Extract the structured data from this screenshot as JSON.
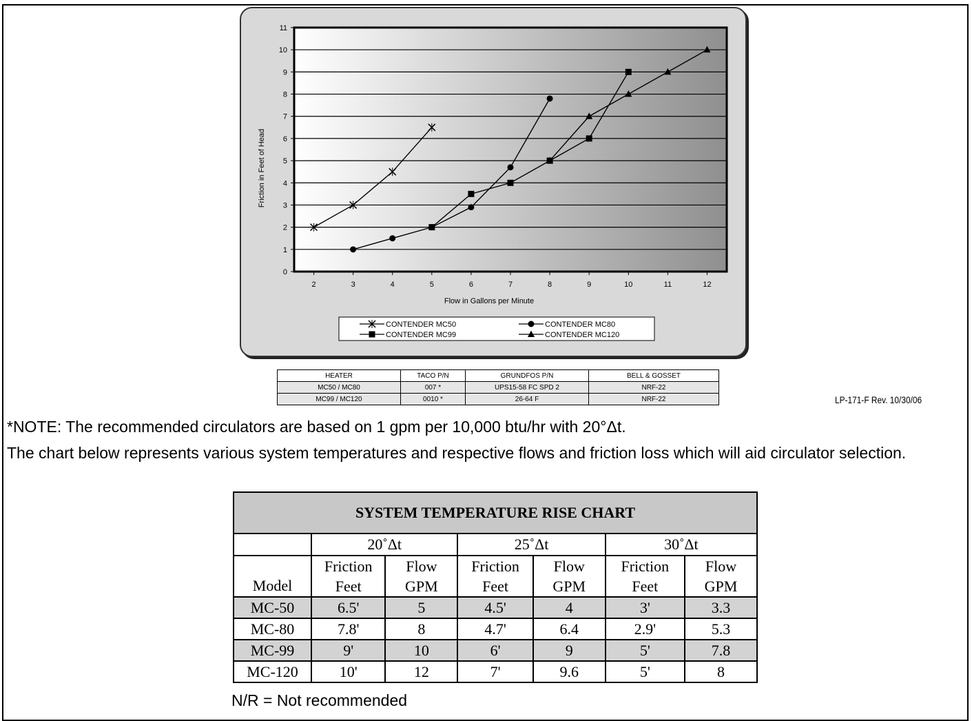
{
  "chart_data": {
    "type": "line",
    "xlabel": "Flow in Gallons per Minute",
    "ylabel": "Friction in Feet of Head",
    "xlim": [
      1.5,
      12.5
    ],
    "ylim": [
      0,
      11
    ],
    "x_ticks": [
      "2",
      "3",
      "4",
      "5",
      "6",
      "7",
      "8",
      "9",
      "10",
      "11",
      "12"
    ],
    "y_ticks": [
      "0",
      "1",
      "2",
      "3",
      "4",
      "5",
      "6",
      "7",
      "8",
      "9",
      "10",
      "11"
    ],
    "grid": "horizontal",
    "legend_position": "bottom",
    "series": [
      {
        "name": "CONTENDER MC50",
        "marker": "x",
        "x": [
          2,
          3,
          4,
          5
        ],
        "y": [
          2,
          3,
          4.5,
          6.5
        ]
      },
      {
        "name": "CONTENDER MC80",
        "marker": "circle",
        "x": [
          3,
          4,
          5,
          6,
          7,
          8
        ],
        "y": [
          1,
          1.5,
          2,
          2.9,
          4.7,
          7.8
        ]
      },
      {
        "name": "CONTENDER MC99",
        "marker": "square",
        "x": [
          5,
          6,
          7,
          8,
          9,
          10
        ],
        "y": [
          2,
          3.5,
          4,
          5,
          6,
          9
        ]
      },
      {
        "name": "CONTENDER MC120",
        "marker": "triangle",
        "x": [
          8,
          9,
          10,
          11,
          12
        ],
        "y": [
          5,
          7,
          8,
          9,
          10
        ]
      }
    ]
  },
  "circulator_table": {
    "headers": [
      "HEATER",
      "TACO P/N",
      "GRUNDFOS P/N",
      "BELL & GOSSET"
    ],
    "rows": [
      [
        "MC50 / MC80",
        "007 *",
        "UPS15-58 FC SPD 2",
        "NRF-22"
      ],
      [
        "MC99 / MC120",
        "0010 *",
        "26-64 F",
        "NRF-22"
      ]
    ]
  },
  "revision": "LP-171-F Rev. 10/30/06",
  "note1": "*NOTE: The recommended circulators are based on 1 gpm per 10,000 btu/hr with 20°Δt.",
  "note2": "The chart below represents various system temperatures and respective flows and friction loss which will aid circulator selection.",
  "rise_table": {
    "title": "SYSTEM TEMPERATURE RISE CHART",
    "groups": [
      "20˚Δt",
      "25˚Δt",
      "30˚Δt"
    ],
    "model_label": "Model",
    "sub_top": [
      "Friction",
      "Flow",
      "Friction",
      "Flow",
      "Friction",
      "Flow"
    ],
    "sub_bottom": [
      "Feet",
      "GPM",
      "Feet",
      "GPM",
      "Feet",
      "GPM"
    ],
    "rows": [
      [
        "MC-50",
        "6.5'",
        "5",
        "4.5'",
        "4",
        "3'",
        "3.3"
      ],
      [
        "MC-80",
        "7.8'",
        "8",
        "4.7'",
        "6.4",
        "2.9'",
        "5.3"
      ],
      [
        "MC-99",
        "9'",
        "10",
        "6'",
        "9",
        "5'",
        "7.8"
      ],
      [
        "MC-120",
        "10'",
        "12",
        "7'",
        "9.6",
        "5'",
        "8"
      ]
    ]
  },
  "footnote": "N/R = Not recommended"
}
